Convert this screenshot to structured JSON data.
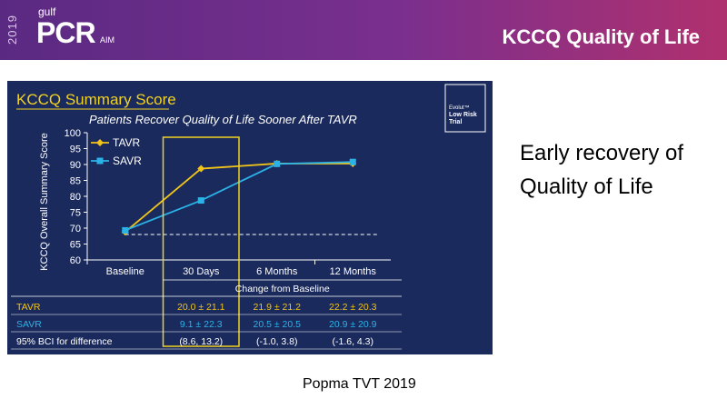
{
  "header": {
    "year": "2019",
    "logo_gulf": "gulf",
    "logo_pcr": "PCR",
    "logo_aim": "AIM",
    "title": "KCCQ Quality of Life"
  },
  "panel": {
    "heading": "KCCQ Summary Score",
    "badge_lines": [
      "Evolut™",
      "Low Risk",
      "Trial"
    ]
  },
  "chart_data": {
    "type": "line",
    "title": "Patients Recover Quality of Life Sooner After TAVR",
    "ylabel": "KCCQ Overall Summary Score",
    "ylim": [
      60,
      100
    ],
    "yticks": [
      60,
      65,
      70,
      75,
      80,
      85,
      90,
      95,
      100
    ],
    "categories": [
      "Baseline",
      "30 Days",
      "6 Months",
      "12 Months"
    ],
    "series": [
      {
        "name": "TAVR",
        "color": "#f0c419",
        "marker": "diamond",
        "values": [
          68.8,
          88.7,
          90.3,
          90.3
        ]
      },
      {
        "name": "SAVR",
        "color": "#2bb3e8",
        "marker": "square",
        "values": [
          69.3,
          78.7,
          90.2,
          90.8
        ]
      }
    ],
    "reference_line": {
      "value": 68,
      "style": "dashed"
    },
    "highlight_category": "30 Days",
    "legend_position": "top-left",
    "grid": false
  },
  "table": {
    "header": "Change from Baseline",
    "rows": [
      {
        "label": "TAVR",
        "color": "#f0c419",
        "cells": [
          "20.0 ± 21.1",
          "21.9 ± 21.2",
          "22.2 ± 20.3"
        ]
      },
      {
        "label": "SAVR",
        "color": "#2bb3e8",
        "cells": [
          "9.1 ± 22.3",
          "20.5 ± 20.5",
          "20.9 ± 20.9"
        ]
      },
      {
        "label": "95% BCI for difference",
        "color": "#ffffff",
        "cells": [
          "(8.6, 13.2)",
          "(-1.0, 3.8)",
          "(-1.6, 4.3)"
        ]
      }
    ]
  },
  "side_text": "Early recovery of Quality of Life",
  "citation": "Popma TVT 2019"
}
